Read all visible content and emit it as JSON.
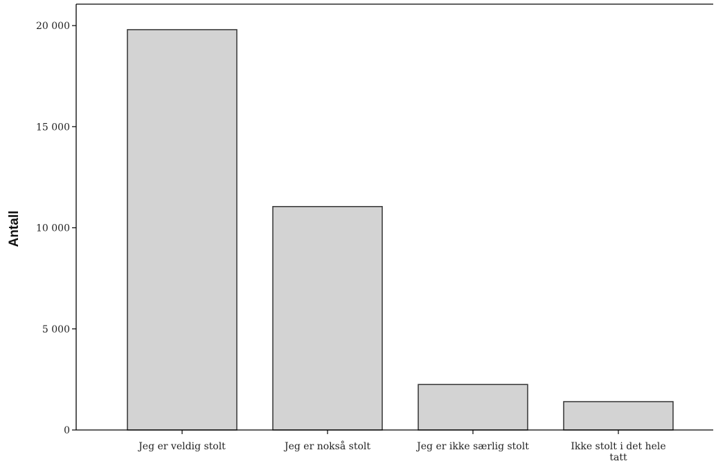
{
  "chart_data": {
    "type": "bar",
    "title": "",
    "xlabel": "",
    "ylabel": "Antall",
    "categories": [
      "Jeg er veldig stolt",
      "Jeg er nokså stolt",
      "Jeg er ikke særlig stolt",
      "Ikke stolt i det hele tatt"
    ],
    "values": [
      19800,
      11050,
      2250,
      1400
    ],
    "ylim": [
      0,
      21000
    ],
    "yticks": [
      0,
      5000,
      10000,
      15000,
      20000
    ],
    "ytick_labels": [
      "0",
      "5 000",
      "10 000",
      "15 000",
      "20 000"
    ],
    "grid": false,
    "legend": "none",
    "bar_color": "#d3d3d3",
    "frame": true
  }
}
